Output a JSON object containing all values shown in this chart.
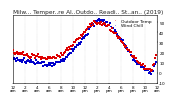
{
  "title": "Milw... Temper..re Al..Outdo.. Readi.. St..an.. (2019)",
  "legend": [
    "Outdoor Temp",
    "Wind Chill"
  ],
  "temp_color": "#dd0000",
  "wind_color": "#0000cc",
  "background_color": "#ffffff",
  "plot_bg": "#ffffff",
  "ylim": [
    -10,
    57
  ],
  "ytick_positions": [
    -10,
    0,
    10,
    20,
    30,
    40,
    50
  ],
  "ytick_labels": [
    "-10",
    "0",
    "10",
    "20",
    "30",
    "40",
    "50"
  ],
  "grid_color": "#bbbbbb",
  "title_fontsize": 4.2,
  "tick_fontsize": 3.0,
  "legend_fontsize": 3.2,
  "temp_data": [
    20,
    19,
    18,
    17,
    16,
    15,
    14,
    15,
    17,
    22,
    28,
    35,
    42,
    48,
    50,
    49,
    46,
    40,
    32,
    24,
    16,
    10,
    5,
    2
  ],
  "wind_data": [
    14,
    13,
    12,
    11,
    10,
    9,
    8,
    9,
    11,
    16,
    22,
    29,
    37,
    45,
    52,
    51,
    48,
    41,
    33,
    24,
    15,
    8,
    3,
    -1
  ],
  "hours": [
    0,
    1,
    2,
    3,
    4,
    5,
    6,
    7,
    8,
    9,
    10,
    11,
    12,
    13,
    14,
    15,
    16,
    17,
    18,
    19,
    20,
    21,
    22,
    23
  ]
}
